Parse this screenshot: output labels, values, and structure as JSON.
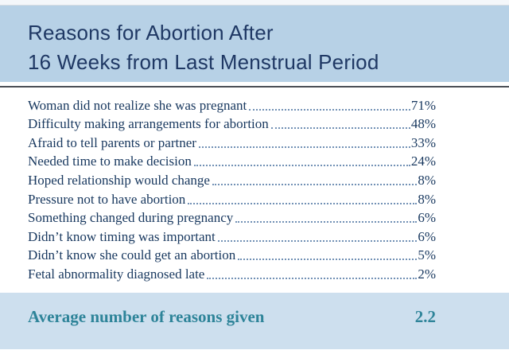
{
  "colors": {
    "slide_background": "#ffffff",
    "header_band": "#b7d1e6",
    "footer_band": "#cddfee",
    "title_text": "#1f3864",
    "body_text": "#17375e",
    "accent_teal": "#2e8499",
    "leader_dots": "#7291b5",
    "divider": "#4a4f55"
  },
  "chart_data": {
    "type": "table",
    "title": "Reasons for Abortion After 16 Weeks from Last Menstrual Period",
    "title_lines": [
      "Reasons for Abortion After",
      "16 Weeks from Last Menstrual Period"
    ],
    "rows": [
      {
        "label": "Woman did not realize she was pregnant",
        "value": "71%"
      },
      {
        "label": "Difficulty making arrangements for abortion",
        "value": "48%"
      },
      {
        "label": "Afraid to tell parents or partner",
        "value": "33%"
      },
      {
        "label": "Needed time to make decision",
        "value": "24%"
      },
      {
        "label": "Hoped relationship would change",
        "value": "8%"
      },
      {
        "label": "Pressure not to have abortion",
        "value": "8%"
      },
      {
        "label": "Something changed during pregnancy",
        "value": "6%"
      },
      {
        "label": "Didn’t know timing was important",
        "value": "6%"
      },
      {
        "label": "Didn’t know she could get an abortion",
        "value": "5%"
      },
      {
        "label": "Fetal abnormality diagnosed late",
        "value": "2%"
      }
    ],
    "footer": {
      "label": "Average number of reasons given",
      "value": "2.2"
    }
  }
}
